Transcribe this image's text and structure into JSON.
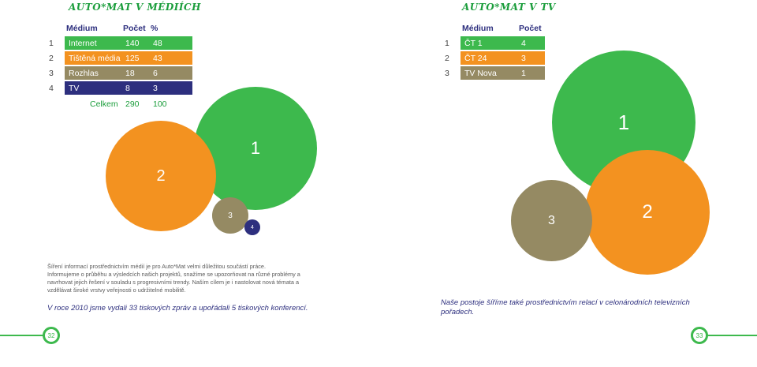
{
  "left": {
    "title": "AUTO*MAT V MÉDIÍCH",
    "headers": [
      "Médium",
      "Počet",
      "%"
    ],
    "rows": [
      {
        "idx": "1",
        "name": "Internet",
        "count": "140",
        "pct": "48",
        "color": "#3db94d"
      },
      {
        "idx": "2",
        "name": "Tištěná média",
        "count": "125",
        "pct": "43",
        "color": "#f39220"
      },
      {
        "idx": "3",
        "name": "Rozhlas",
        "count": "18",
        "pct": "6",
        "color": "#958a63"
      },
      {
        "idx": "4",
        "name": "TV",
        "count": "8",
        "pct": "3",
        "color": "#2d2f7e"
      }
    ],
    "total": {
      "label": "Celkem",
      "count": "290",
      "pct": "100"
    },
    "bubbles": [
      "1",
      "2",
      "3",
      "4"
    ],
    "paragraph1": "Šíření informací prostřednictvím médií je pro Auto*Mat velmi důležitou součástí práce.",
    "paragraph2": "Informujeme o průběhu a výsledcích našich projektů, snažíme se upozorňovat na různé problémy a navrhovat jejich řešení v souladu s progresivními trendy. Naším cílem je i nastolovat nová témata a vzdělávat široké vrstvy veřejnosti o udržitelné mobilitě.",
    "highlight": "V roce 2010 jsme vydali 33 tiskových zpráv a upořádali 5 tiskových konferencí.",
    "page": "32"
  },
  "right": {
    "title": "AUTO*MAT V TV",
    "headers": [
      "Médium",
      "Počet"
    ],
    "rows": [
      {
        "idx": "1",
        "name": "ČT 1",
        "count": "4",
        "color": "#3db94d"
      },
      {
        "idx": "2",
        "name": "ČT 24",
        "count": "3",
        "color": "#f39220"
      },
      {
        "idx": "3",
        "name": "TV Nova",
        "count": "1",
        "color": "#958a63"
      }
    ],
    "bubbles": [
      "1",
      "2",
      "3"
    ],
    "highlight": "Naše postoje šíříme také prostřednictvím relací v celonárodních televizních pořadech.",
    "page": "33"
  }
}
